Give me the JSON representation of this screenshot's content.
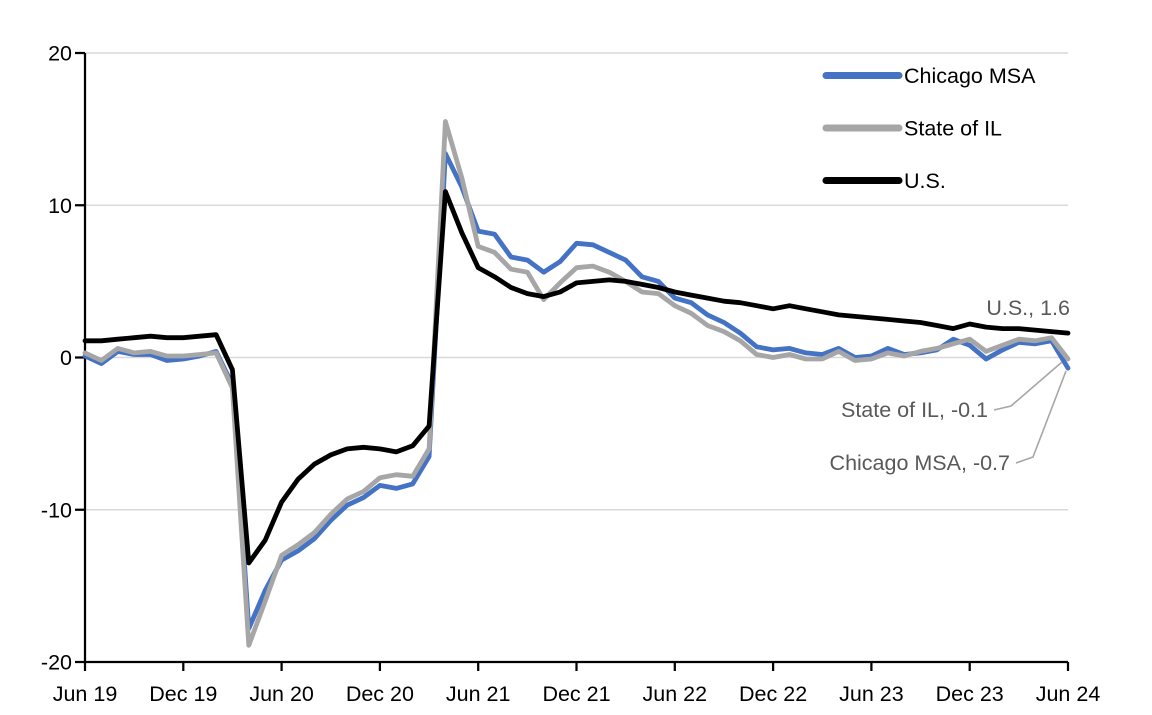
{
  "chart_data": {
    "type": "line",
    "title": "",
    "frequency": "monthly",
    "months": [
      "2019-06",
      "2019-07",
      "2019-08",
      "2019-09",
      "2019-10",
      "2019-11",
      "2019-12",
      "2020-01",
      "2020-02",
      "2020-03",
      "2020-04",
      "2020-05",
      "2020-06",
      "2020-07",
      "2020-08",
      "2020-09",
      "2020-10",
      "2020-11",
      "2020-12",
      "2021-01",
      "2021-02",
      "2021-03",
      "2021-04",
      "2021-05",
      "2021-06",
      "2021-07",
      "2021-08",
      "2021-09",
      "2021-10",
      "2021-11",
      "2021-12",
      "2022-01",
      "2022-02",
      "2022-03",
      "2022-04",
      "2022-05",
      "2022-06",
      "2022-07",
      "2022-08",
      "2022-09",
      "2022-10",
      "2022-11",
      "2022-12",
      "2023-01",
      "2023-02",
      "2023-03",
      "2023-04",
      "2023-05",
      "2023-06",
      "2023-07",
      "2023-08",
      "2023-09",
      "2023-10",
      "2023-11",
      "2023-12",
      "2024-01",
      "2024-02",
      "2024-03",
      "2024-04",
      "2024-05",
      "2024-06"
    ],
    "x_axis": {
      "tick_labels": [
        "Jun 19",
        "Dec 19",
        "Jun 20",
        "Dec 20",
        "Jun 21",
        "Dec 21",
        "Jun 22",
        "Dec 22",
        "Jun 23",
        "Dec 23",
        "Jun 24"
      ],
      "tick_interval_months": 6
    },
    "y_axis": {
      "ticks": [
        20,
        10,
        0,
        -10,
        -20
      ],
      "range": [
        -20,
        20
      ]
    },
    "grid": true,
    "legend": {
      "position": "top-right",
      "entries": [
        "Chicago MSA",
        "State of IL",
        "U.S."
      ]
    },
    "series": [
      {
        "name": "Chicago MSA",
        "color": "#4472C4",
        "values": [
          0.1,
          -0.4,
          0.4,
          0.2,
          0.2,
          -0.2,
          -0.1,
          0.1,
          0.4,
          -1.8,
          -17.8,
          -15.3,
          -13.3,
          -12.7,
          -11.9,
          -10.7,
          -9.7,
          -9.2,
          -8.4,
          -8.6,
          -8.3,
          -6.5,
          13.4,
          11.2,
          8.3,
          8.1,
          6.6,
          6.4,
          5.6,
          6.3,
          7.5,
          7.4,
          6.9,
          6.4,
          5.3,
          5.0,
          3.9,
          3.6,
          2.8,
          2.3,
          1.6,
          0.7,
          0.5,
          0.6,
          0.3,
          0.2,
          0.6,
          0.0,
          0.1,
          0.6,
          0.2,
          0.3,
          0.5,
          1.2,
          0.8,
          -0.1,
          0.5,
          1.0,
          0.9,
          1.1,
          -0.7
        ]
      },
      {
        "name": "State of IL",
        "color": "#A6A6A6",
        "values": [
          0.3,
          -0.2,
          0.6,
          0.3,
          0.4,
          0.1,
          0.1,
          0.2,
          0.3,
          -2.0,
          -18.9,
          -16.0,
          -13.0,
          -12.3,
          -11.5,
          -10.3,
          -9.3,
          -8.8,
          -7.9,
          -7.7,
          -7.8,
          -6.0,
          15.5,
          11.8,
          7.3,
          6.9,
          5.8,
          5.6,
          3.8,
          4.9,
          5.9,
          6.0,
          5.6,
          5.0,
          4.3,
          4.2,
          3.4,
          2.9,
          2.1,
          1.7,
          1.1,
          0.2,
          0.0,
          0.2,
          -0.1,
          -0.1,
          0.4,
          -0.2,
          -0.1,
          0.3,
          0.1,
          0.4,
          0.6,
          0.9,
          1.2,
          0.4,
          0.8,
          1.2,
          1.1,
          1.3,
          -0.1
        ]
      },
      {
        "name": "U.S.",
        "color": "#000000",
        "values": [
          1.1,
          1.1,
          1.2,
          1.3,
          1.4,
          1.3,
          1.3,
          1.4,
          1.5,
          -0.8,
          -13.5,
          -12.0,
          -9.5,
          -8.0,
          -7.0,
          -6.4,
          -6.0,
          -5.9,
          -6.0,
          -6.2,
          -5.8,
          -4.5,
          10.9,
          8.2,
          5.9,
          5.3,
          4.6,
          4.2,
          4.0,
          4.3,
          4.9,
          5.0,
          5.1,
          5.0,
          4.8,
          4.6,
          4.3,
          4.1,
          3.9,
          3.7,
          3.6,
          3.4,
          3.2,
          3.4,
          3.2,
          3.0,
          2.8,
          2.7,
          2.6,
          2.5,
          2.4,
          2.3,
          2.1,
          1.9,
          2.2,
          2.0,
          1.9,
          1.9,
          1.8,
          1.7,
          1.6
        ]
      }
    ],
    "annotations": [
      {
        "id": "us",
        "text": "U.S., 1.6",
        "series": "U.S.",
        "value": 1.6
      },
      {
        "id": "state-of-il",
        "text": "State of IL, -0.1",
        "series": "State of IL",
        "value": -0.1
      },
      {
        "id": "chicago-msa",
        "text": "Chicago MSA, -0.7",
        "series": "Chicago MSA",
        "value": -0.7
      }
    ]
  },
  "colors": {
    "background": "#FFFFFF",
    "gridline": "#D9D9D9",
    "axis": "#000000",
    "tick_label": "#000000",
    "annotation_text": "#595959",
    "leader_line": "#A6A6A6"
  }
}
